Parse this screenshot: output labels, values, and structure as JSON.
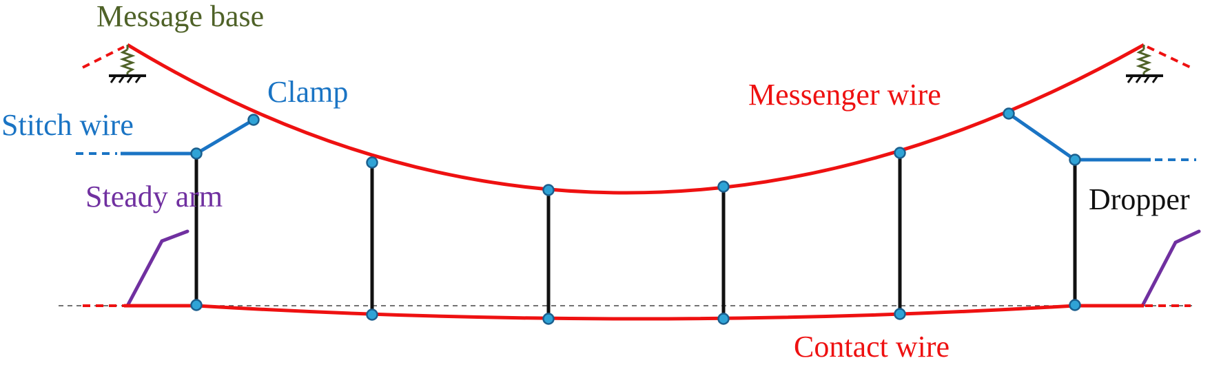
{
  "labels": {
    "message_base": "Message base",
    "clamp": "Clamp",
    "stitch_wire": "Stitch wire",
    "steady_arm": "Steady arm",
    "messenger_wire": "Messenger wire",
    "dropper": "Dropper",
    "contact_wire": "Contact wire"
  },
  "colors": {
    "messenger_wire": "#ee1111",
    "contact_wire": "#ee1111",
    "stitch_wire": "#1a74c4",
    "dropper": "#111111",
    "steady_arm": "#7030a0",
    "message_base": "#4f6228",
    "node_fill": "#2fa3d6",
    "node_stroke": "#1b5f8e",
    "reference_line": "#333333"
  },
  "icons": {
    "support": "spring-ground-icon",
    "node": "circle-node-icon"
  }
}
